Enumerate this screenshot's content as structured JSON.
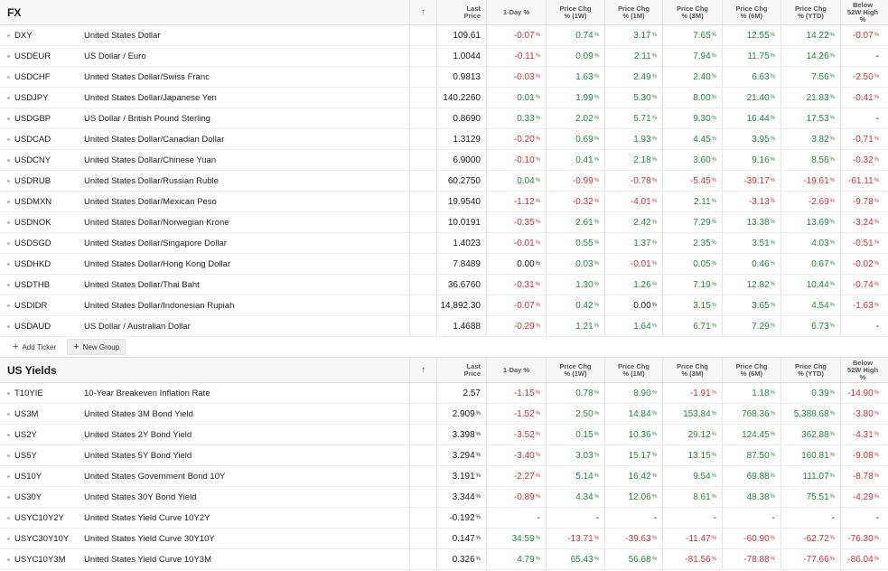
{
  "headers": {
    "sort_icon": "↑",
    "last_price": [
      "Last",
      "Price"
    ],
    "day_change": "1-Day %",
    "chg_1w": [
      "Price Chg",
      "% (1W)"
    ],
    "chg_1m": [
      "Price Chg",
      "% (1M)"
    ],
    "chg_3m": [
      "Price Chg",
      "% (3M)"
    ],
    "chg_6m": [
      "Price Chg",
      "% (6M)"
    ],
    "chg_ytd": [
      "Price Chg",
      "% (YTD)"
    ],
    "below_52w": [
      "Below",
      "52W High",
      "%"
    ]
  },
  "fx": {
    "title": "FX",
    "rows": [
      {
        "symbol": "DXY",
        "name": "United States Dollar",
        "last": "109.61",
        "d1": "-0.07",
        "w1": "0.74",
        "m1": "3.17",
        "m3": "7.65",
        "m6": "12.55",
        "ytd": "14.22",
        "h52": "-0.07"
      },
      {
        "symbol": "USDEUR",
        "name": "US Dollar / Euro",
        "last": "1.0044",
        "d1": "-0.11",
        "w1": "0.09",
        "m1": "2.11",
        "m3": "7.94",
        "m6": "11.75",
        "ytd": "14.26",
        "h52": "-"
      },
      {
        "symbol": "USDCHF",
        "name": "United States Dollar/Swiss Franc",
        "last": "0.9813",
        "d1": "-0.03",
        "w1": "1.63",
        "m1": "2.49",
        "m3": "2.40",
        "m6": "6.63",
        "ytd": "7.56",
        "h52": "-2.50"
      },
      {
        "symbol": "USDJPY",
        "name": "United States Dollar/Japanese Yen",
        "last": "140.2260",
        "d1": "0.01",
        "w1": "1.99",
        "m1": "5.30",
        "m3": "8.00",
        "m6": "21.40",
        "ytd": "21.83",
        "h52": "-0.41"
      },
      {
        "symbol": "USDGBP",
        "name": "US Dollar / British Pound Sterling",
        "last": "0.8690",
        "d1": "0.33",
        "w1": "2.02",
        "m1": "5.71",
        "m3": "9.30",
        "m6": "16.44",
        "ytd": "17.53",
        "h52": "-"
      },
      {
        "symbol": "USDCAD",
        "name": "United States Dollar/Canadian Dollar",
        "last": "1.3129",
        "d1": "-0.20",
        "w1": "0.69",
        "m1": "1.93",
        "m3": "4.45",
        "m6": "3.95",
        "ytd": "3.82",
        "h52": "-0.71"
      },
      {
        "symbol": "USDCNY",
        "name": "United States Dollar/Chinese Yuan",
        "last": "6.9000",
        "d1": "-0.10",
        "w1": "0.41",
        "m1": "2.18",
        "m3": "3.60",
        "m6": "9.16",
        "ytd": "8.56",
        "h52": "-0.32"
      },
      {
        "symbol": "USDRUB",
        "name": "United States Dollar/Russian Ruble",
        "last": "60.2750",
        "d1": "0.04",
        "w1": "-0.99",
        "m1": "-0.78",
        "m3": "-5.45",
        "m6": "-39.17",
        "ytd": "-19.61",
        "h52": "-61.11"
      },
      {
        "symbol": "USDMXN",
        "name": "United States Dollar/Mexican Peso",
        "last": "19.9540",
        "d1": "-1.12",
        "w1": "-0.32",
        "m1": "-4.01",
        "m3": "2.11",
        "m6": "-3.13",
        "ytd": "-2.69",
        "h52": "-9.78"
      },
      {
        "symbol": "USDNOK",
        "name": "United States Dollar/Norwegian Krone",
        "last": "10.0191",
        "d1": "-0.35",
        "w1": "2.61",
        "m1": "2.42",
        "m3": "7.29",
        "m6": "13.38",
        "ytd": "13.69",
        "h52": "-3.24"
      },
      {
        "symbol": "USDSGD",
        "name": "United States Dollar/Singapore Dollar",
        "last": "1.4023",
        "d1": "-0.01",
        "w1": "0.55",
        "m1": "1.37",
        "m3": "2.35",
        "m6": "3.51",
        "ytd": "4.03",
        "h52": "-0.51"
      },
      {
        "symbol": "USDHKD",
        "name": "United States Dollar/Hong Kong Dollar",
        "last": "7.8489",
        "d1": "0.00",
        "w1": "0.03",
        "m1": "-0.01",
        "m3": "0.05",
        "m6": "0.46",
        "ytd": "0.67",
        "h52": "-0.02"
      },
      {
        "symbol": "USDTHB",
        "name": "United States Dollar/Thai Baht",
        "last": "36.6760",
        "d1": "-0.31",
        "w1": "1.30",
        "m1": "1.26",
        "m3": "7.19",
        "m6": "12.82",
        "ytd": "10.44",
        "h52": "-0.74"
      },
      {
        "symbol": "USDIDR",
        "name": "United States Dollar/Indonesian Rupiah",
        "last": "14,892.30",
        "d1": "-0.07",
        "w1": "0.42",
        "m1": "0.00",
        "m3": "3.15",
        "m6": "3.65",
        "ytd": "4.54",
        "h52": "-1.63"
      },
      {
        "symbol": "USDAUD",
        "name": "US Dollar / Australian Dollar",
        "last": "1.4688",
        "d1": "-0.29",
        "w1": "1.21",
        "m1": "1.64",
        "m3": "6.71",
        "m6": "7.29",
        "ytd": "6.73",
        "h52": "-"
      }
    ],
    "add_ticker": "Add Ticker",
    "new_group": "New Group"
  },
  "yields": {
    "title": "US Yields",
    "rows": [
      {
        "symbol": "T10YIE",
        "name": "10-Year Breakeven Inflation Rate",
        "last": "2.57",
        "d1": "-1.15",
        "w1": "0.78",
        "m1": "8.90",
        "m3": "-1.91",
        "m6": "1.18",
        "ytd": "0.39",
        "h52": "-14.90"
      },
      {
        "symbol": "US3M",
        "name": "United States 3M Bond Yield",
        "last": "2.909",
        "lastpct": true,
        "d1": "-1.52",
        "w1": "2.50",
        "m1": "14.84",
        "m3": "153.84",
        "m6": "768.36",
        "ytd": "5,388.68",
        "h52": "-3.80"
      },
      {
        "symbol": "US2Y",
        "name": "United States 2Y Bond Yield",
        "last": "3.398",
        "lastpct": true,
        "d1": "-3.52",
        "w1": "0.15",
        "m1": "10.36",
        "m3": "29.12",
        "m6": "124.45",
        "ytd": "362.88",
        "h52": "-4.31"
      },
      {
        "symbol": "US5Y",
        "name": "United States 5Y Bond Yield",
        "last": "3.294",
        "lastpct": true,
        "d1": "-3.40",
        "w1": "3.03",
        "m1": "15.17",
        "m3": "13.15",
        "m6": "87.50",
        "ytd": "160.81",
        "h52": "-9.08"
      },
      {
        "symbol": "US10Y",
        "name": "United States Government Bond 10Y",
        "last": "3.191",
        "lastpct": true,
        "d1": "-2.27",
        "w1": "5.14",
        "m1": "16.42",
        "m3": "9.54",
        "m6": "69.88",
        "ytd": "111.07",
        "h52": "-8.78"
      },
      {
        "symbol": "US30Y",
        "name": "United States 30Y Bond Yield",
        "last": "3.344",
        "lastpct": true,
        "d1": "-0.89",
        "w1": "4.34",
        "m1": "12.06",
        "m3": "8.61",
        "m6": "48.38",
        "ytd": "75.51",
        "h52": "-4.29"
      },
      {
        "symbol": "USYC10Y2Y",
        "name": "United States Yield Curve 10Y2Y",
        "last": "-0.192",
        "lastpct": true,
        "d1": "-",
        "w1": "-",
        "m1": "-",
        "m3": "-",
        "m6": "-",
        "ytd": "-",
        "h52": "-"
      },
      {
        "symbol": "USYC30Y10Y",
        "name": "United States Yield Curve 30Y10Y",
        "last": "0.147",
        "lastpct": true,
        "d1": "34.59",
        "w1": "-13.71",
        "m1": "-39.63",
        "m3": "-11.47",
        "m6": "-60.90",
        "ytd": "-62.72",
        "h52": "-76.30"
      },
      {
        "symbol": "USYC10Y3M",
        "name": "United States Yield Curve 10Y3M",
        "last": "0.326",
        "lastpct": true,
        "d1": "4.79",
        "w1": "65.43",
        "m1": "56.68",
        "m3": "-81.56",
        "m6": "-78.88",
        "ytd": "-77.66",
        "h52": "-86.04"
      }
    ]
  },
  "colors": {
    "positive": "#1f8a3c",
    "negative": "#d32f2f"
  }
}
